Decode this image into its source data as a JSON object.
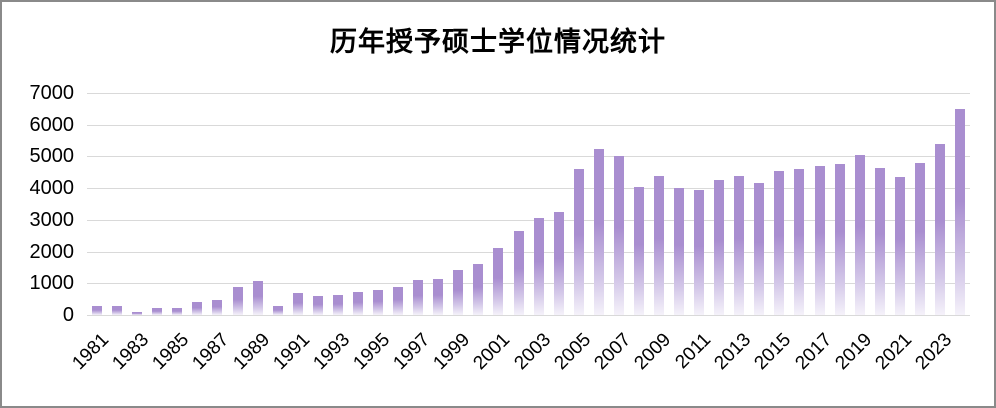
{
  "title": "历年授予硕士学位情况统计",
  "chart_data": {
    "type": "bar",
    "title": "历年授予硕士学位情况统计",
    "xlabel": "",
    "ylabel": "",
    "x": [
      1981,
      1982,
      1983,
      1984,
      1985,
      1986,
      1987,
      1988,
      1989,
      1990,
      1991,
      1992,
      1993,
      1994,
      1995,
      1996,
      1997,
      1998,
      1999,
      2000,
      2001,
      2002,
      2003,
      2004,
      2005,
      2006,
      2007,
      2008,
      2009,
      2010,
      2011,
      2012,
      2013,
      2014,
      2015,
      2016,
      2017,
      2018,
      2019,
      2020,
      2021,
      2022,
      2023,
      2024
    ],
    "values": [
      270,
      300,
      110,
      215,
      230,
      410,
      460,
      900,
      1080,
      270,
      700,
      600,
      640,
      730,
      790,
      890,
      1120,
      1130,
      1410,
      1610,
      2100,
      2650,
      3050,
      3250,
      4600,
      5250,
      5000,
      4050,
      4400,
      4000,
      3950,
      4250,
      4400,
      4150,
      4550,
      4600,
      4700,
      4750,
      5050,
      4650,
      4350,
      4800,
      5400,
      6500
    ],
    "x_tick_labels": [
      "1981",
      "1983",
      "1985",
      "1987",
      "1989",
      "1991",
      "1993",
      "1995",
      "1997",
      "1999",
      "2001",
      "2003",
      "2005",
      "2007",
      "2009",
      "2011",
      "2013",
      "2015",
      "2017",
      "2019",
      "2021",
      "2023"
    ],
    "y_ticks": [
      0,
      1000,
      2000,
      3000,
      4000,
      5000,
      6000,
      7000
    ],
    "ylim": [
      0,
      7000
    ],
    "grid": "horizontal gridlines every 1000, light gray",
    "legend": "none",
    "colors": {
      "bar_top": "#a98ed0",
      "bar_mid_fade": "#d3c7e8",
      "bar_fade_bottom": "#f5f2fa",
      "gridline": "#d9d9d9",
      "title_text": "#000000",
      "axis_text": "#000000",
      "frame_border": "#8a8a8a",
      "background": "#ffffff"
    }
  }
}
